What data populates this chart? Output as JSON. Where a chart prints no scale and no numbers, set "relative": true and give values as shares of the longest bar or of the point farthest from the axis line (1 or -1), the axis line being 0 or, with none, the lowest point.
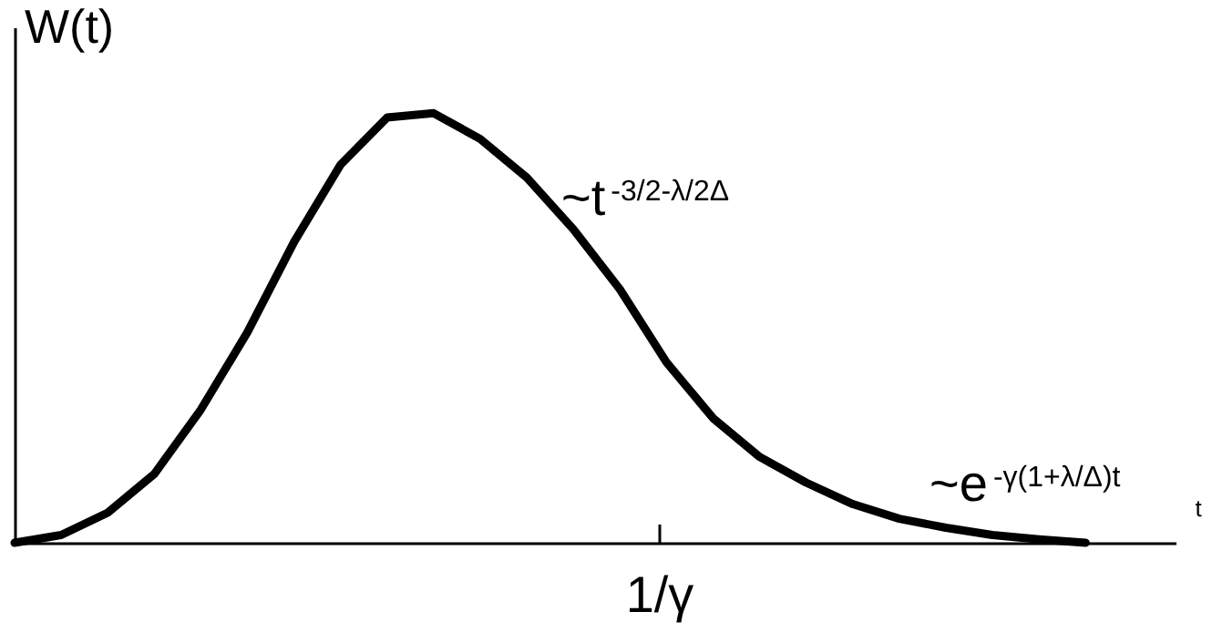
{
  "chart_data": {
    "type": "line",
    "relative": true,
    "xlabel": "t",
    "ylabel": "W(t)",
    "categories": [
      null,
      null,
      null,
      null,
      null,
      null,
      null,
      null,
      null,
      null,
      null,
      null,
      null,
      null,
      null,
      null,
      null,
      null,
      null,
      null,
      null,
      null,
      null,
      null
    ],
    "series": [
      {
        "color": "#000000",
        "values": [
          0,
          0.018,
          0.07,
          0.16,
          0.31,
          0.49,
          0.7,
          0.88,
          0.99,
          1,
          0.94,
          0.85,
          0.73,
          0.59,
          0.42,
          0.29,
          0.2,
          0.14,
          0.09,
          0.056,
          0.035,
          0.018,
          0.008,
          0
        ]
      }
    ],
    "annotations": [
      "~t$^{-3/2-λ/2Δ}$",
      "~e$^{-γ(1+λ/Δ)t}$",
      "1/γ"
    ],
    "grid": false,
    "line_style": "solid"
  }
}
